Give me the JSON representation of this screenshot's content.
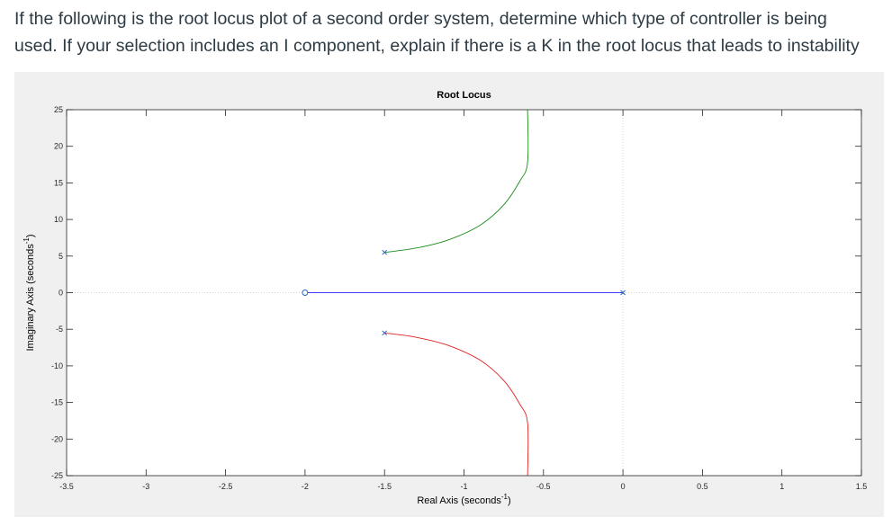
{
  "question": {
    "line1": "If the following is the root locus plot of a second order system, determine which type of controller is being",
    "line2": "used. If your selection includes an I component, explain if there is a K in the root locus that leads to instability"
  },
  "chart_data": {
    "type": "line",
    "title": "Root Locus",
    "xlabel": "Real Axis (seconds",
    "xlabel_sup": "-1",
    "xlabel_close": ")",
    "ylabel": "Imaginary Axis (seconds",
    "ylabel_sup": "-1",
    "ylabel_close": ")",
    "xlim": [
      -3.5,
      1.5
    ],
    "ylim": [
      -25,
      25
    ],
    "xticks": [
      -3.5,
      -3,
      -2.5,
      -2,
      -1.5,
      -1,
      -0.5,
      0,
      0.5,
      1,
      1.5
    ],
    "xtick_labels": [
      "-3.5",
      "-3",
      "-2.5",
      "-2",
      "-1.5",
      "-1",
      "-0.5",
      "0",
      "0.5",
      "1",
      "1.5"
    ],
    "yticks": [
      -25,
      -20,
      -15,
      -10,
      -5,
      0,
      5,
      10,
      15,
      20,
      25
    ],
    "ytick_labels": [
      "-25",
      "-20",
      "-15",
      "-10",
      "-5",
      "0",
      "5",
      "10",
      "15",
      "20",
      "25"
    ],
    "poles": [
      {
        "x": 0,
        "y": 0
      },
      {
        "x": -1.5,
        "y": 5.5
      },
      {
        "x": -1.5,
        "y": -5.5
      }
    ],
    "zeros": [
      {
        "x": -2,
        "y": 0
      }
    ],
    "series": [
      {
        "color": "#4040ff",
        "points": [
          [
            0,
            0
          ],
          [
            -0.5,
            0
          ],
          [
            -1.0,
            0
          ],
          [
            -1.5,
            0
          ],
          [
            -2,
            0
          ]
        ]
      },
      {
        "color": "#1a8c1a",
        "points": [
          [
            -1.5,
            5.5
          ],
          [
            -1.3,
            6.1
          ],
          [
            -1.1,
            7.2
          ],
          [
            -0.9,
            9.2
          ],
          [
            -0.75,
            12.0
          ],
          [
            -0.65,
            15.2
          ],
          [
            -0.6,
            17.8
          ],
          [
            -0.6,
            25
          ]
        ]
      },
      {
        "color": "#e02020",
        "points": [
          [
            -1.5,
            -5.5
          ],
          [
            -1.3,
            -6.1
          ],
          [
            -1.1,
            -7.2
          ],
          [
            -0.9,
            -9.2
          ],
          [
            -0.75,
            -12.0
          ],
          [
            -0.65,
            -15.2
          ],
          [
            -0.6,
            -17.8
          ],
          [
            -0.6,
            -25
          ]
        ]
      }
    ],
    "colors": {
      "pole_marker": "#2060c0",
      "zero_marker": "#2060c0",
      "zero_line": "#c8c8c8"
    },
    "grid": false,
    "legend": "none"
  }
}
